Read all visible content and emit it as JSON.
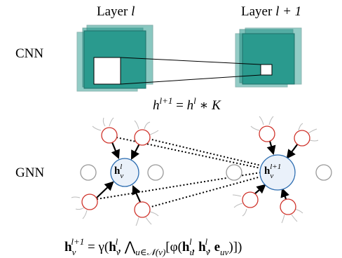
{
  "labels": {
    "layer_left": [
      "Layer ",
      "l"
    ],
    "layer_right": [
      "Layer ",
      "l + 1"
    ],
    "cnn": "CNN",
    "gnn": "GNN"
  },
  "cnn_equation": [
    "h",
    "l+1",
    " = ",
    "h",
    "l",
    " ∗ ",
    "K"
  ],
  "node_left": [
    "h",
    "v",
    "l"
  ],
  "node_right": [
    "h",
    "v",
    "l+1"
  ],
  "gnn_equation": [
    "h",
    "v",
    "l+1",
    " = γ(",
    "h",
    "v",
    "l",
    ", ⋀",
    "u∈𝒩(v)",
    "[φ(",
    "h",
    "u",
    "l",
    ", ",
    "h",
    "v",
    "l",
    ", ",
    "e",
    "uv",
    ")])"
  ]
}
